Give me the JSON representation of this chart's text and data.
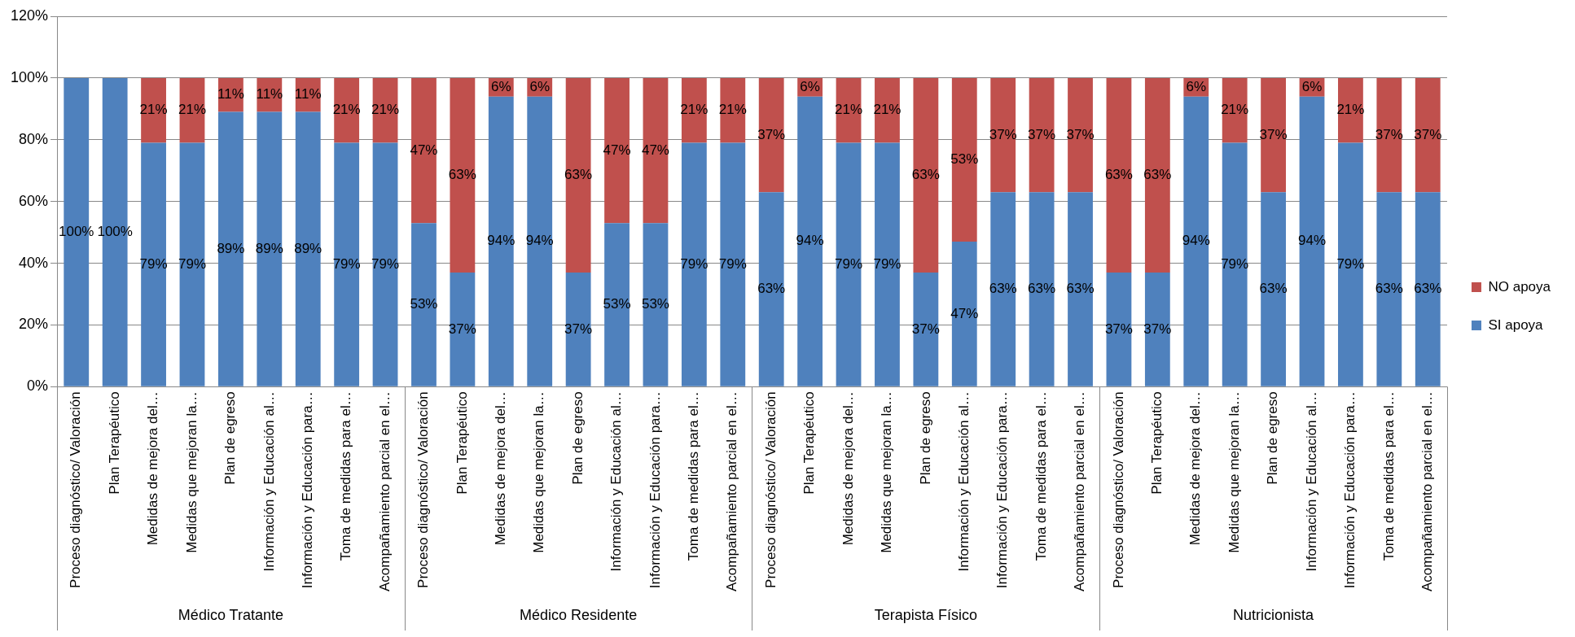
{
  "chart_data": {
    "type": "bar",
    "stacked": true,
    "categories": [
      "Proceso diagnóstico/ Valoración",
      "Plan Terapéutico",
      "Medidas de mejora del…",
      "Medidas que mejoran la…",
      "Plan de egreso",
      "Información y Educación al…",
      "Información y Educación para…",
      "Toma de medidas para el…",
      "Acompañamiento parcial en el…",
      "Proceso diagnóstico/ Valoración",
      "Plan Terapéutico",
      "Medidas de mejora del…",
      "Medidas que mejoran la…",
      "Plan de egreso",
      "Información y Educación al…",
      "Información y Educación para…",
      "Toma de medidas para el…",
      "Acompañamiento parcial en el…",
      "Proceso diagnóstico/ Valoración",
      "Plan Terapéutico",
      "Medidas de mejora del…",
      "Medidas que mejoran la…",
      "Plan de egreso",
      "Información y Educación al…",
      "Información y Educación para…",
      "Toma de medidas para el…",
      "Acompañamiento parcial en el…",
      "Proceso diagnóstico/ Valoración",
      "Plan Terapéutico",
      "Medidas de mejora del…",
      "Medidas que mejoran la…",
      "Plan de egreso",
      "Información y Educación al…",
      "Información y Educación para…",
      "Toma de medidas para el…",
      "Acompañamiento parcial en el…"
    ],
    "series": [
      {
        "name": "SI apoya",
        "color": "#4f81bd",
        "values": [
          100,
          100,
          79,
          79,
          89,
          89,
          89,
          79,
          79,
          53,
          37,
          94,
          94,
          37,
          53,
          53,
          79,
          79,
          63,
          94,
          79,
          79,
          37,
          47,
          63,
          63,
          63,
          37,
          37,
          94,
          79,
          63,
          94,
          79,
          63,
          63
        ],
        "value_labels": [
          "100%",
          "100%",
          "79%",
          "79%",
          "89%",
          "89%",
          "89%",
          "79%",
          "79%",
          "53%",
          "37%",
          "94%",
          "94%",
          "37%",
          "53%",
          "53%",
          "79%",
          "79%",
          "63%",
          "94%",
          "79%",
          "79%",
          "37%",
          "47%",
          "63%",
          "63%",
          "63%",
          "37%",
          "37%",
          "94%",
          "79%",
          "63%",
          "94%",
          "79%",
          "63%",
          "63%"
        ]
      },
      {
        "name": "NO apoya",
        "color": "#c0504d",
        "values": [
          0,
          0,
          21,
          21,
          11,
          11,
          11,
          21,
          21,
          47,
          63,
          6,
          6,
          63,
          47,
          47,
          21,
          21,
          37,
          6,
          21,
          21,
          63,
          53,
          37,
          37,
          37,
          63,
          63,
          6,
          21,
          37,
          6,
          21,
          37,
          37
        ],
        "value_labels": [
          null,
          null,
          "21%",
          "21%",
          "11%",
          "11%",
          "11%",
          "21%",
          "21%",
          "47%",
          "63%",
          "6%",
          "6%",
          "63%",
          "47%",
          "47%",
          "21%",
          "21%",
          "37%",
          "6%",
          "21%",
          "21%",
          "63%",
          "53%",
          "37%",
          "37%",
          "37%",
          "63%",
          "63%",
          "6%",
          "21%",
          "37%",
          "6%",
          "21%",
          "37%",
          "37%"
        ]
      }
    ],
    "annotations": [
      "Médico Tratante",
      "Médico Residente",
      "Terapista Físico",
      "Nutricionista"
    ],
    "ylim": [
      0,
      120
    ],
    "yticks": [
      {
        "value": 0,
        "label": "0%"
      },
      {
        "value": 20,
        "label": "20%"
      },
      {
        "value": 40,
        "label": "40%"
      },
      {
        "value": 60,
        "label": "60%"
      },
      {
        "value": 80,
        "label": "80%"
      },
      {
        "value": 100,
        "label": "100%"
      },
      {
        "value": 120,
        "label": "120%"
      }
    ],
    "grid": "y",
    "legend": "right"
  }
}
